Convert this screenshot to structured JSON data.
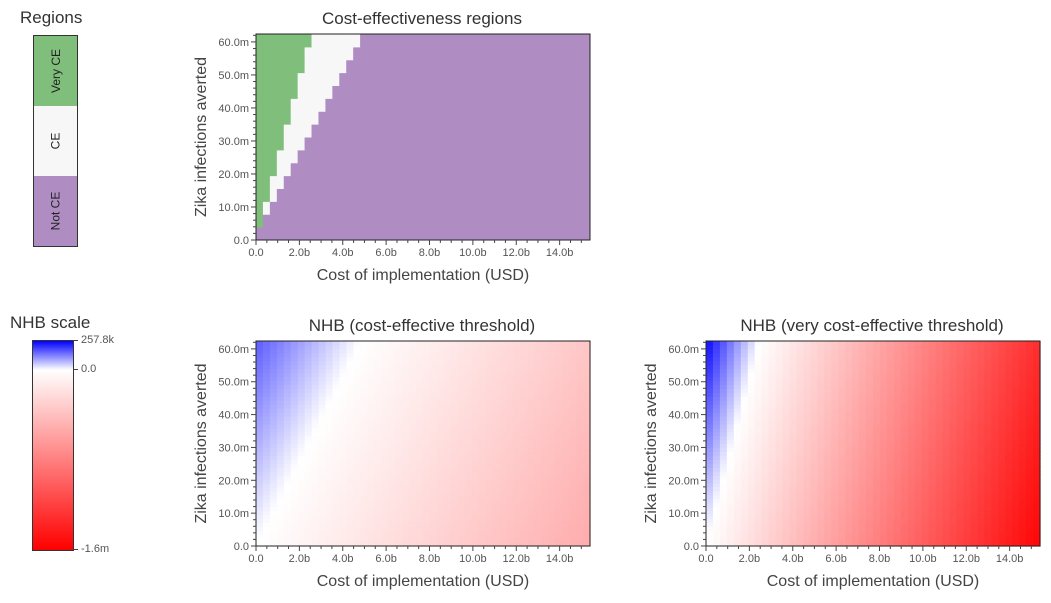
{
  "regions_legend": {
    "title": "Regions",
    "items": [
      {
        "label": "Very CE",
        "color": "#7fbf7b"
      },
      {
        "label": "CE",
        "color": "#f7f7f7"
      },
      {
        "label": "Not CE",
        "color": "#af8dc3"
      }
    ]
  },
  "nhb_legend": {
    "title": "NHB scale",
    "max_label": "257.8k",
    "zero_label": "0.0",
    "min_label": "-1.6m",
    "max": 257800,
    "min": -1600000,
    "colors": {
      "positive": "#0000ff",
      "zero": "#ffffff",
      "negative": "#ff0000"
    }
  },
  "chart_data": [
    {
      "type": "heatmap",
      "title": "Cost-effectiveness regions",
      "xlabel": "Cost of implementation (USD)",
      "ylabel": "Zika infections averted",
      "xlim": [
        0,
        15.4
      ],
      "ylim": [
        0,
        62.4
      ],
      "x_unit": "b",
      "y_unit": "m",
      "xticks": [
        "0.0",
        "2.0b",
        "4.0b",
        "6.0b",
        "8.0b",
        "10.0b",
        "12.0b",
        "14.0b"
      ],
      "yticks": [
        "0.0",
        "10.0m",
        "20.0m",
        "30.0m",
        "40.0m",
        "50.0m",
        "60.0m"
      ],
      "grid_step": {
        "x": 0.32,
        "y": 3.9
      },
      "very_ce_max_cost_per_infection": 0.042,
      "ce_max_cost_per_infection": 0.078,
      "categories": [
        "Very CE",
        "CE",
        "Not CE"
      ]
    },
    {
      "type": "heatmap",
      "title": "NHB (cost-effective threshold)",
      "xlabel": "Cost of implementation (USD)",
      "ylabel": "Zika infections averted",
      "xlim": [
        0,
        15.4
      ],
      "ylim": [
        0,
        62.4
      ],
      "xticks": [
        "0.0",
        "2.0b",
        "4.0b",
        "6.0b",
        "8.0b",
        "10.0b",
        "12.0b",
        "14.0b"
      ],
      "yticks": [
        "0.0",
        "10.0m",
        "20.0m",
        "30.0m",
        "40.0m",
        "50.0m",
        "60.0m"
      ],
      "nhb_per_m_infections": 2640,
      "nhb_per_b_cost": 33900
    },
    {
      "type": "heatmap",
      "title": "NHB (very cost-effective threshold)",
      "xlabel": "Cost of implementation (USD)",
      "ylabel": "Zika infections averted",
      "xlim": [
        0,
        15.4
      ],
      "ylim": [
        0,
        62.4
      ],
      "xticks": [
        "0.0",
        "2.0b",
        "4.0b",
        "6.0b",
        "8.0b",
        "10.0b",
        "12.0b",
        "14.0b"
      ],
      "yticks": [
        "0.0",
        "10.0m",
        "20.0m",
        "30.0m",
        "40.0m",
        "50.0m",
        "60.0m"
      ],
      "nhb_per_m_infections": 4030,
      "nhb_per_b_cost": 101600
    }
  ]
}
